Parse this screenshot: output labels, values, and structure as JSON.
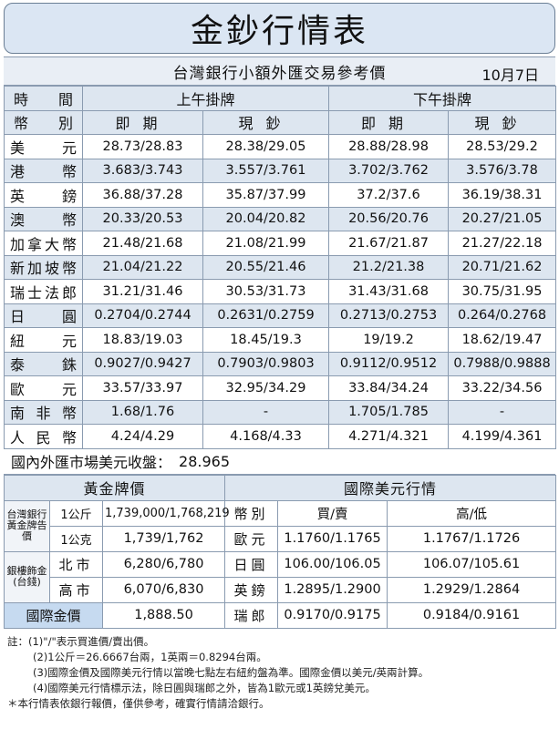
{
  "title": "金鈔行情表",
  "subtitle": "台灣銀行小額外匯交易參考價",
  "date": "10月7日",
  "header": {
    "row1_label": "時間",
    "morning": "上午掛牌",
    "afternoon": "下午掛牌",
    "row2_label": "幣別",
    "spot": "即期",
    "cash": "現鈔"
  },
  "rates": [
    {
      "currency": "美元",
      "am_spot": "28.73/28.83",
      "am_cash": "28.38/29.05",
      "pm_spot": "28.88/28.98",
      "pm_cash": "28.53/29.2"
    },
    {
      "currency": "港幣",
      "am_spot": "3.683/3.743",
      "am_cash": "3.557/3.761",
      "pm_spot": "3.702/3.762",
      "pm_cash": "3.576/3.78"
    },
    {
      "currency": "英鎊",
      "am_spot": "36.88/37.28",
      "am_cash": "35.87/37.99",
      "pm_spot": "37.2/37.6",
      "pm_cash": "36.19/38.31"
    },
    {
      "currency": "澳幣",
      "am_spot": "20.33/20.53",
      "am_cash": "20.04/20.82",
      "pm_spot": "20.56/20.76",
      "pm_cash": "20.27/21.05"
    },
    {
      "currency": "加拿大幣",
      "am_spot": "21.48/21.68",
      "am_cash": "21.08/21.99",
      "pm_spot": "21.67/21.87",
      "pm_cash": "21.27/22.18"
    },
    {
      "currency": "新加坡幣",
      "am_spot": "21.04/21.22",
      "am_cash": "20.55/21.46",
      "pm_spot": "21.2/21.38",
      "pm_cash": "20.71/21.62"
    },
    {
      "currency": "瑞士法郎",
      "am_spot": "31.21/31.46",
      "am_cash": "30.53/31.73",
      "pm_spot": "31.43/31.68",
      "pm_cash": "30.75/31.95"
    },
    {
      "currency": "日圓",
      "am_spot": "0.2704/0.2744",
      "am_cash": "0.2631/0.2759",
      "pm_spot": "0.2713/0.2753",
      "pm_cash": "0.264/0.2768"
    },
    {
      "currency": "紐元",
      "am_spot": "18.83/19.03",
      "am_cash": "18.45/19.3",
      "pm_spot": "19/19.2",
      "pm_cash": "18.62/19.47"
    },
    {
      "currency": "泰銖",
      "am_spot": "0.9027/0.9427",
      "am_cash": "0.7903/0.9803",
      "pm_spot": "0.9112/0.9512",
      "pm_cash": "0.7988/0.9888"
    },
    {
      "currency": "歐元",
      "am_spot": "33.57/33.97",
      "am_cash": "32.95/34.29",
      "pm_spot": "33.84/34.24",
      "pm_cash": "33.22/34.56"
    },
    {
      "currency": "南非幣",
      "am_spot": "1.68/1.76",
      "am_cash": "-",
      "pm_spot": "1.705/1.785",
      "pm_cash": "-"
    },
    {
      "currency": "人民幣",
      "am_spot": "4.24/4.29",
      "am_cash": "4.168/4.33",
      "pm_spot": "4.271/4.321",
      "pm_cash": "4.199/4.361"
    }
  ],
  "usd_close": {
    "label": "國內外匯市場美元收盤：",
    "value": "28.965"
  },
  "gold": {
    "title": "黃金牌價",
    "twbank_label": "台灣銀行黃金牌告價",
    "unit_kg": "1公斤",
    "price_kg": "1,739,000/1,768,219",
    "unit_g": "1公克",
    "price_g": "1,739/1,762",
    "jewelry_label": "銀樓飾金(台錢)",
    "taipei": "北市",
    "taipei_price": "6,280/6,780",
    "kaohsiung": "高市",
    "kaohsiung_price": "6,070/6,830",
    "intl_label": "國際金價",
    "intl_price": "1,888.50"
  },
  "intl_usd": {
    "title": "國際美元行情",
    "col_currency": "幣別",
    "col_buysell": "買/賣",
    "col_highlow": "高/低",
    "rows": [
      {
        "currency": "歐元",
        "buysell": "1.1760/1.1765",
        "highlow": "1.1767/1.1726"
      },
      {
        "currency": "日圓",
        "buysell": "106.00/106.05",
        "highlow": "106.07/105.61"
      },
      {
        "currency": "英鎊",
        "buysell": "1.2895/1.2900",
        "highlow": "1.2929/1.2864"
      },
      {
        "currency": "瑞郎",
        "buysell": "0.9170/0.9175",
        "highlow": "0.9184/0.9161"
      }
    ]
  },
  "notes": [
    "註：(1)\"/\"表示買進價/賣出價。",
    "(2)1公斤＝26.6667台兩，1英兩＝0.8294台兩。",
    "(3)國際金價及國際美元行情以當晚七點左右紐約盤為準。國際金價以美元/英兩計算。",
    "(4)國際美元行情標示法，除日圓與瑞郎之外，皆為1歐元或1英鎊兌美元。",
    "＊本行情表依銀行報價，僅供參考，確實行情請洽銀行。"
  ]
}
